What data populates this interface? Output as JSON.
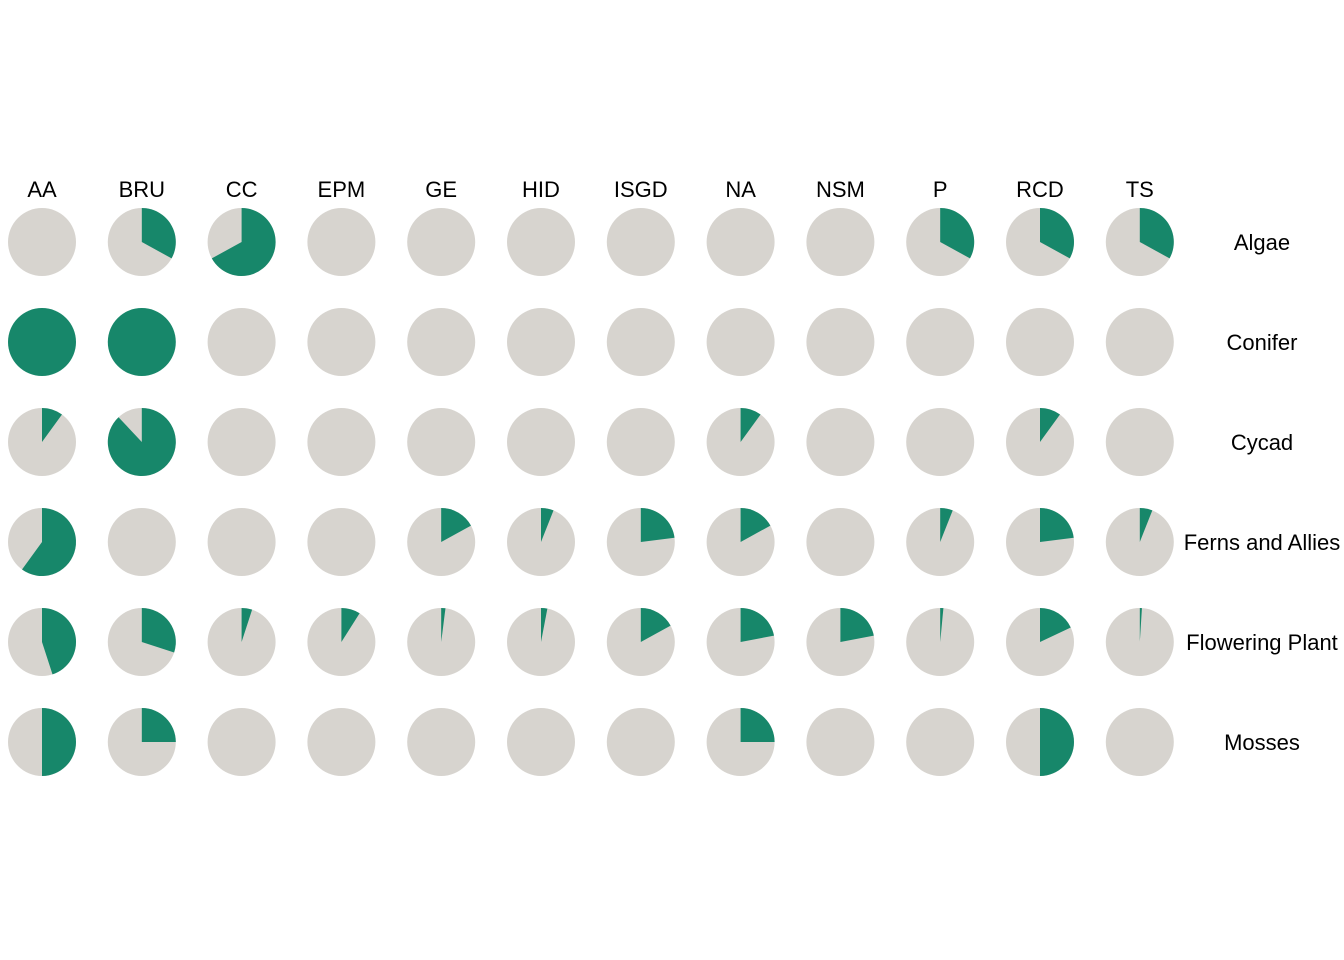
{
  "chart_data": {
    "type": "pie",
    "layout": "small-multiples grid",
    "columns": [
      "AA",
      "BRU",
      "CC",
      "EPM",
      "GE",
      "HID",
      "ISGD",
      "NA",
      "NSM",
      "P",
      "RCD",
      "TS"
    ],
    "rows": [
      "Algae",
      "Conifer",
      "Cycad",
      "Ferns and Allies",
      "Flowering Plant",
      "Mosses"
    ],
    "value_unit": "fraction of pie (0-1), highlighted share",
    "values": [
      [
        0.0,
        0.33,
        0.67,
        0.0,
        0.0,
        0.0,
        0.0,
        0.0,
        0.0,
        0.33,
        0.33,
        0.33
      ],
      [
        1.0,
        1.0,
        0.0,
        0.0,
        0.0,
        0.0,
        0.0,
        0.0,
        0.0,
        0.0,
        0.0,
        0.0
      ],
      [
        0.1,
        0.88,
        0.0,
        0.0,
        0.0,
        0.0,
        0.0,
        0.1,
        0.0,
        0.0,
        0.1,
        0.0
      ],
      [
        0.6,
        0.0,
        0.0,
        0.0,
        0.17,
        0.06,
        0.23,
        0.17,
        0.0,
        0.06,
        0.23,
        0.06
      ],
      [
        0.45,
        0.3,
        0.05,
        0.09,
        0.02,
        0.03,
        0.17,
        0.22,
        0.22,
        0.015,
        0.18,
        0.01
      ],
      [
        0.5,
        0.25,
        0.0,
        0.0,
        0.0,
        0.0,
        0.0,
        0.25,
        0.0,
        0.0,
        0.5,
        0.0
      ]
    ],
    "colors": {
      "highlight": "#17876A",
      "base": "#D7D4CF"
    },
    "legend": "none",
    "grid": false
  }
}
